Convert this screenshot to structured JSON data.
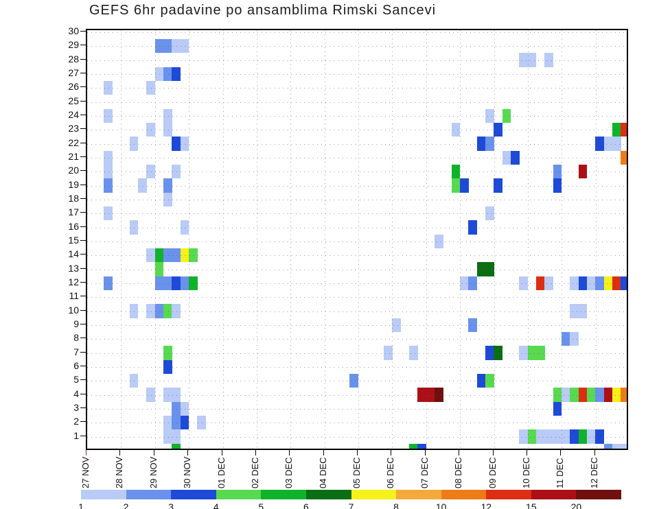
{
  "title": "GEFS 6hr padavine po ansamblima Rimski Sancevi",
  "chart_data": {
    "type": "heatmap",
    "title": "GEFS 6hr padavine po ansamblima Rimski Sancevi",
    "description_visible": "ensemble members (rows) vs 6-hour forecast intervals (columns), colored by 6hr precipitation amount",
    "x_axis": {
      "tick_labels": [
        "27 NOV",
        "28 NOV",
        "29 NOV",
        "30 NOV",
        "01 DEC",
        "02 DEC",
        "03 DEC",
        "04 DEC",
        "05 DEC",
        "06 DEC",
        "07 DEC",
        "08 DEC",
        "09 DEC",
        "10 DEC",
        "11 DEC",
        "12 DEC"
      ],
      "steps_per_day": 4,
      "total_steps": 64,
      "grid": "dotted vertical line at each day tick"
    },
    "y_axis": {
      "tick_labels": [
        "30",
        "29",
        "28",
        "27",
        "26",
        "25",
        "24",
        "23",
        "22",
        "21",
        "20",
        "19",
        "18",
        "17",
        "16",
        "15",
        "14",
        "13",
        "12",
        "11",
        "10",
        "9",
        "8",
        "7",
        "6",
        "5",
        "4",
        "3",
        "2",
        "1"
      ],
      "members_top_to_bottom": true,
      "grid": "dotted horizontal line at each member tick"
    },
    "legend": {
      "position": "bottom",
      "labels": [
        "1",
        "2",
        "3",
        "4",
        "5",
        "6",
        "7",
        "8",
        "10",
        "12",
        "15",
        "20"
      ],
      "colors": [
        "#b9cbf6",
        "#6a92ec",
        "#1e4ad8",
        "#57da50",
        "#0fb32a",
        "#0c6e14",
        "#f6f118",
        "#f4a93c",
        "#ee7c16",
        "#dc2e12",
        "#ac1016",
        "#6f100e"
      ]
    },
    "cells_format": [
      "member",
      "step_6hr_index_from_27NOV_00",
      "color_index_into_legend_colors"
    ],
    "cells": [
      [
        29,
        8,
        1
      ],
      [
        29,
        9,
        1
      ],
      [
        29,
        10,
        0
      ],
      [
        29,
        11,
        0
      ],
      [
        28,
        51,
        0
      ],
      [
        28,
        52,
        0
      ],
      [
        28,
        54,
        0
      ],
      [
        27,
        8,
        0
      ],
      [
        27,
        9,
        1
      ],
      [
        27,
        10,
        2
      ],
      [
        26,
        2,
        0
      ],
      [
        26,
        7,
        0
      ],
      [
        24,
        2,
        0
      ],
      [
        24,
        9,
        0
      ],
      [
        24,
        47,
        0
      ],
      [
        24,
        49,
        3
      ],
      [
        23,
        7,
        0
      ],
      [
        23,
        9,
        0
      ],
      [
        23,
        43,
        0
      ],
      [
        23,
        48,
        2
      ],
      [
        23,
        62,
        4
      ],
      [
        23,
        63,
        9
      ],
      [
        22,
        5,
        0
      ],
      [
        22,
        10,
        2
      ],
      [
        22,
        11,
        0
      ],
      [
        22,
        46,
        2
      ],
      [
        22,
        47,
        1
      ],
      [
        22,
        60,
        2
      ],
      [
        22,
        61,
        0
      ],
      [
        22,
        62,
        0
      ],
      [
        21,
        2,
        0
      ],
      [
        21,
        49,
        0
      ],
      [
        21,
        50,
        2
      ],
      [
        21,
        63,
        8
      ],
      [
        20,
        2,
        0
      ],
      [
        20,
        7,
        0
      ],
      [
        20,
        10,
        0
      ],
      [
        20,
        43,
        4
      ],
      [
        20,
        55,
        1
      ],
      [
        20,
        58,
        10
      ],
      [
        19,
        2,
        1
      ],
      [
        19,
        6,
        0
      ],
      [
        19,
        9,
        1
      ],
      [
        19,
        43,
        3
      ],
      [
        19,
        44,
        2
      ],
      [
        19,
        48,
        2
      ],
      [
        19,
        55,
        2
      ],
      [
        18,
        9,
        0
      ],
      [
        17,
        2,
        0
      ],
      [
        17,
        47,
        0
      ],
      [
        16,
        5,
        0
      ],
      [
        16,
        11,
        0
      ],
      [
        16,
        45,
        2
      ],
      [
        15,
        41,
        0
      ],
      [
        14,
        7,
        0
      ],
      [
        14,
        8,
        4
      ],
      [
        14,
        9,
        1
      ],
      [
        14,
        10,
        1
      ],
      [
        14,
        11,
        6
      ],
      [
        14,
        12,
        3
      ],
      [
        13,
        8,
        3
      ],
      [
        13,
        46,
        5
      ],
      [
        13,
        47,
        5
      ],
      [
        12,
        2,
        1
      ],
      [
        12,
        8,
        1
      ],
      [
        12,
        9,
        1
      ],
      [
        12,
        10,
        2
      ],
      [
        12,
        11,
        1
      ],
      [
        12,
        12,
        4
      ],
      [
        12,
        44,
        0
      ],
      [
        12,
        45,
        1
      ],
      [
        12,
        51,
        0
      ],
      [
        12,
        53,
        9
      ],
      [
        12,
        54,
        0
      ],
      [
        12,
        57,
        0
      ],
      [
        12,
        58,
        2
      ],
      [
        12,
        59,
        0
      ],
      [
        12,
        60,
        1
      ],
      [
        12,
        61,
        6
      ],
      [
        12,
        62,
        9
      ],
      [
        12,
        63,
        2
      ],
      [
        10,
        5,
        0
      ],
      [
        10,
        7,
        0
      ],
      [
        10,
        8,
        1
      ],
      [
        10,
        9,
        3
      ],
      [
        10,
        10,
        0
      ],
      [
        10,
        57,
        0
      ],
      [
        10,
        58,
        0
      ],
      [
        9,
        36,
        0
      ],
      [
        9,
        45,
        1
      ],
      [
        8,
        56,
        1
      ],
      [
        8,
        57,
        0
      ],
      [
        7,
        9,
        3
      ],
      [
        7,
        35,
        0
      ],
      [
        7,
        38,
        0
      ],
      [
        7,
        47,
        2
      ],
      [
        7,
        48,
        5
      ],
      [
        7,
        51,
        0
      ],
      [
        7,
        52,
        3
      ],
      [
        7,
        53,
        3
      ],
      [
        6,
        9,
        2
      ],
      [
        5,
        5,
        0
      ],
      [
        5,
        31,
        1
      ],
      [
        5,
        46,
        2
      ],
      [
        5,
        47,
        3
      ],
      [
        4,
        7,
        0
      ],
      [
        4,
        9,
        0
      ],
      [
        4,
        10,
        0
      ],
      [
        4,
        39,
        10
      ],
      [
        4,
        40,
        10
      ],
      [
        4,
        41,
        11
      ],
      [
        4,
        55,
        3
      ],
      [
        4,
        56,
        0
      ],
      [
        4,
        57,
        3
      ],
      [
        4,
        58,
        9
      ],
      [
        4,
        59,
        3
      ],
      [
        4,
        60,
        1
      ],
      [
        4,
        61,
        10
      ],
      [
        4,
        62,
        6
      ],
      [
        4,
        63,
        8
      ],
      [
        3,
        10,
        1
      ],
      [
        3,
        11,
        0
      ],
      [
        3,
        55,
        2
      ],
      [
        2,
        9,
        0
      ],
      [
        2,
        10,
        1
      ],
      [
        2,
        11,
        2
      ],
      [
        2,
        13,
        0
      ],
      [
        1,
        9,
        0
      ],
      [
        1,
        10,
        0
      ],
      [
        1,
        51,
        0
      ],
      [
        1,
        52,
        3
      ],
      [
        1,
        53,
        0
      ],
      [
        1,
        54,
        0
      ],
      [
        1,
        55,
        0
      ],
      [
        1,
        56,
        0
      ],
      [
        1,
        57,
        2
      ],
      [
        1,
        58,
        4
      ],
      [
        1,
        59,
        0
      ],
      [
        1,
        60,
        2
      ],
      [
        0,
        10,
        4
      ],
      [
        0,
        38,
        4
      ],
      [
        0,
        39,
        2
      ],
      [
        0,
        61,
        1
      ],
      [
        0,
        62,
        0
      ],
      [
        0,
        63,
        0
      ]
    ],
    "first_x_tick_color": "#b22222"
  }
}
